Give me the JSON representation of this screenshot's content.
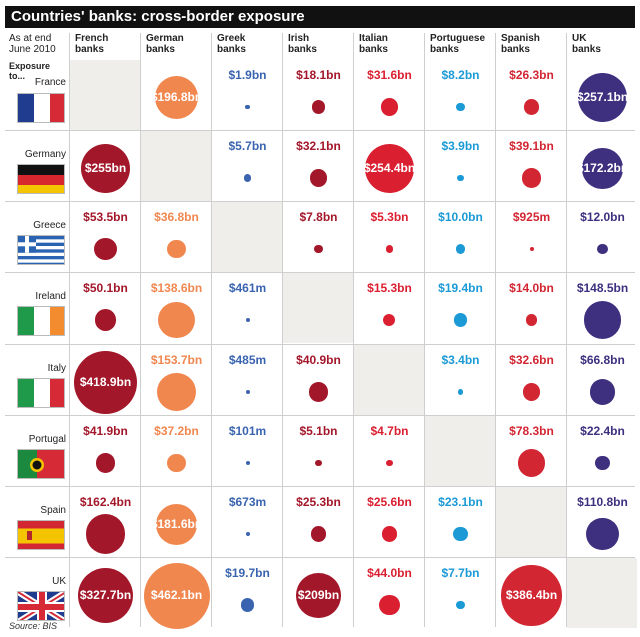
{
  "title": "Countries' banks: cross-border exposure",
  "as_at": "As at end June 2010",
  "exposure_label": "Exposure to...",
  "source": "Source: BIS",
  "chart_data": {
    "type": "bubble-matrix",
    "title": "Countries' banks: cross-border exposure",
    "columns": [
      "French banks",
      "German banks",
      "Greek banks",
      "Irish banks",
      "Italian banks",
      "Portuguese banks",
      "Spanish banks",
      "UK banks"
    ],
    "rows": [
      "France",
      "Germany",
      "Greece",
      "Ireland",
      "Italy",
      "Portugal",
      "Spain",
      "UK"
    ],
    "unit": "$bn",
    "values": [
      [
        null,
        196.8,
        1.9,
        18.1,
        31.6,
        8.2,
        26.3,
        257.1
      ],
      [
        255,
        null,
        5.7,
        32.1,
        254.4,
        3.9,
        39.1,
        172.2
      ],
      [
        53.5,
        36.8,
        null,
        7.8,
        5.3,
        10.0,
        0.925,
        12.0
      ],
      [
        50.1,
        138.6,
        0.461,
        null,
        15.3,
        19.4,
        14.0,
        148.5
      ],
      [
        418.9,
        153.7,
        0.485,
        40.9,
        null,
        3.4,
        32.6,
        66.8
      ],
      [
        41.9,
        37.2,
        0.101,
        5.1,
        4.7,
        null,
        78.3,
        22.4
      ],
      [
        162.4,
        181.6,
        0.673,
        25.3,
        25.6,
        23.1,
        null,
        110.8
      ],
      [
        327.7,
        462.1,
        19.7,
        209,
        44.0,
        7.7,
        386.4,
        null
      ]
    ],
    "labels": [
      [
        "",
        "$196.8bn",
        "$1.9bn",
        "$18.1bn",
        "$31.6bn",
        "$8.2bn",
        "$26.3bn",
        "$257.1bn"
      ],
      [
        "$255bn",
        "",
        "$5.7bn",
        "$32.1bn",
        "$254.4bn",
        "$3.9bn",
        "$39.1bn",
        "$172.2bn"
      ],
      [
        "$53.5bn",
        "$36.8bn",
        "",
        "$7.8bn",
        "$5.3bn",
        "$10.0bn",
        "$925m",
        "$12.0bn"
      ],
      [
        "$50.1bn",
        "$138.6bn",
        "$461m",
        "",
        "$15.3bn",
        "$19.4bn",
        "$14.0bn",
        "$148.5bn"
      ],
      [
        "$418.9bn",
        "$153.7bn",
        "$485m",
        "$40.9bn",
        "",
        "$3.4bn",
        "$32.6bn",
        "$66.8bn"
      ],
      [
        "$41.9bn",
        "$37.2bn",
        "$101m",
        "$5.1bn",
        "$4.7bn",
        "",
        "$78.3bn",
        "$22.4bn"
      ],
      [
        "$162.4bn",
        "$181.6bn",
        "$673m",
        "$25.3bn",
        "$25.6bn",
        "$23.1bn",
        "",
        "$110.8bn"
      ],
      [
        "$327.7bn",
        "$462.1bn",
        "$19.7bn",
        "$209bn",
        "$44.0bn",
        "$7.7bn",
        "$386.4bn",
        ""
      ]
    ],
    "column_colors": [
      "#a3172a",
      "#f0874f",
      "#3a64b0",
      "#a3172a",
      "#da1f30",
      "#1b9ad6",
      "#d22633",
      "#3e2f7f"
    ]
  }
}
